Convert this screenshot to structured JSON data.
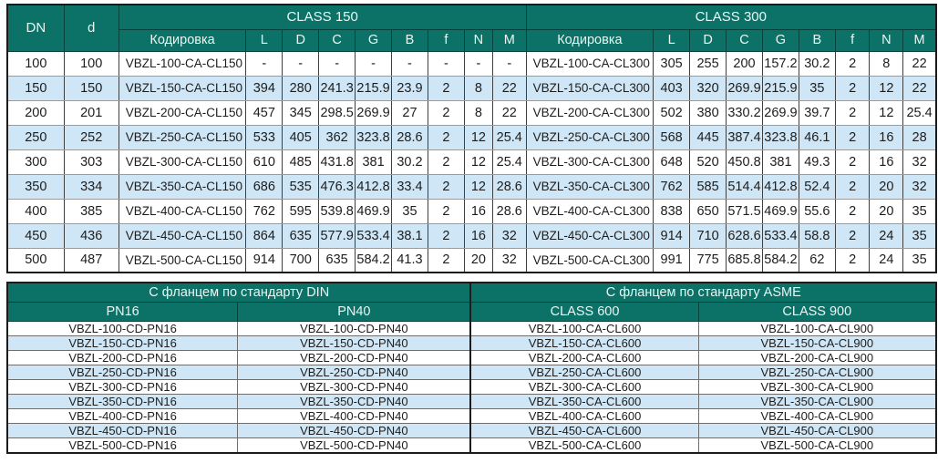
{
  "top_table": {
    "dn_label": "DN",
    "d_label": "d",
    "class150_label": "CLASS 150",
    "class300_label": "CLASS 300",
    "sub_headers": [
      "Кодировка",
      "L",
      "D",
      "C",
      "G",
      "B",
      "f",
      "N",
      "M"
    ],
    "rows": [
      {
        "dn": "100",
        "d": "100",
        "c150": [
          "VBZL-100-CA-CL150",
          "-",
          "-",
          "-",
          "-",
          "-",
          "-",
          "-",
          "-"
        ],
        "c300": [
          "VBZL-100-CA-CL300",
          "305",
          "255",
          "200",
          "157.2",
          "30.2",
          "2",
          "8",
          "22"
        ]
      },
      {
        "dn": "150",
        "d": "150",
        "c150": [
          "VBZL-150-CA-CL150",
          "394",
          "280",
          "241.3",
          "215.9",
          "23.9",
          "2",
          "8",
          "22"
        ],
        "c300": [
          "VBZL-150-CA-CL300",
          "403",
          "320",
          "269.9",
          "215.9",
          "35",
          "2",
          "12",
          "22"
        ]
      },
      {
        "dn": "200",
        "d": "201",
        "c150": [
          "VBZL-200-CA-CL150",
          "457",
          "345",
          "298.5",
          "269.9",
          "27",
          "2",
          "8",
          "22"
        ],
        "c300": [
          "VBZL-200-CA-CL300",
          "502",
          "380",
          "330.2",
          "269.9",
          "39.7",
          "2",
          "12",
          "25.4"
        ]
      },
      {
        "dn": "250",
        "d": "252",
        "c150": [
          "VBZL-250-CA-CL150",
          "533",
          "405",
          "362",
          "323.8",
          "28.6",
          "2",
          "12",
          "25.4"
        ],
        "c300": [
          "VBZL-250-CA-CL300",
          "568",
          "445",
          "387.4",
          "323.8",
          "46.1",
          "2",
          "16",
          "28"
        ]
      },
      {
        "dn": "300",
        "d": "303",
        "c150": [
          "VBZL-300-CA-CL150",
          "610",
          "485",
          "431.8",
          "381",
          "30.2",
          "2",
          "12",
          "25.4"
        ],
        "c300": [
          "VBZL-300-CA-CL300",
          "648",
          "520",
          "450.8",
          "381",
          "49.3",
          "2",
          "16",
          "32"
        ]
      },
      {
        "dn": "350",
        "d": "334",
        "c150": [
          "VBZL-350-CA-CL150",
          "686",
          "535",
          "476.3",
          "412.8",
          "33.4",
          "2",
          "12",
          "28.6"
        ],
        "c300": [
          "VBZL-350-CA-CL300",
          "762",
          "585",
          "514.4",
          "412.8",
          "52.4",
          "2",
          "20",
          "32"
        ]
      },
      {
        "dn": "400",
        "d": "385",
        "c150": [
          "VBZL-400-CA-CL150",
          "762",
          "595",
          "539.8",
          "469.9",
          "35",
          "2",
          "16",
          "28.6"
        ],
        "c300": [
          "VBZL-400-CA-CL300",
          "838",
          "650",
          "571.5",
          "469.9",
          "55.6",
          "2",
          "20",
          "35"
        ]
      },
      {
        "dn": "450",
        "d": "436",
        "c150": [
          "VBZL-450-CA-CL150",
          "864",
          "635",
          "577.9",
          "533.4",
          "38.1",
          "2",
          "16",
          "32"
        ],
        "c300": [
          "VBZL-450-CA-CL300",
          "914",
          "710",
          "628.6",
          "533.4",
          "58.8",
          "2",
          "24",
          "35"
        ]
      },
      {
        "dn": "500",
        "d": "487",
        "c150": [
          "VBZL-500-CA-CL150",
          "914",
          "700",
          "635",
          "584.2",
          "41.3",
          "2",
          "20",
          "32"
        ],
        "c300": [
          "VBZL-500-CA-CL300",
          "991",
          "775",
          "685.8",
          "584.2",
          "62",
          "2",
          "24",
          "35"
        ]
      }
    ]
  },
  "bottom_table": {
    "din_title": "С фланцем по стандарту DIN",
    "asme_title": "С фланцем по стандарту ASME",
    "sub_headers": [
      "PN16",
      "PN40",
      "CLASS 600",
      "CLASS 900"
    ],
    "rows": [
      [
        "VBZL-100-CD-PN16",
        "VBZL-100-CD-PN40",
        "VBZL-100-CA-CL600",
        "VBZL-100-CA-CL900"
      ],
      [
        "VBZL-150-CD-PN16",
        "VBZL-150-CD-PN40",
        "VBZL-150-CA-CL600",
        "VBZL-150-CA-CL900"
      ],
      [
        "VBZL-200-CD-PN16",
        "VBZL-200-CD-PN40",
        "VBZL-200-CA-CL600",
        "VBZL-200-CA-CL900"
      ],
      [
        "VBZL-250-CD-PN16",
        "VBZL-250-CD-PN40",
        "VBZL-250-CA-CL600",
        "VBZL-250-CA-CL900"
      ],
      [
        "VBZL-300-CD-PN16",
        "VBZL-300-CD-PN40",
        "VBZL-300-CA-CL600",
        "VBZL-300-CA-CL900"
      ],
      [
        "VBZL-350-CD-PN16",
        "VBZL-350-CD-PN40",
        "VBZL-350-CA-CL600",
        "VBZL-350-CA-CL900"
      ],
      [
        "VBZL-400-CD-PN16",
        "VBZL-400-CD-PN40",
        "VBZL-400-CA-CL600",
        "VBZL-400-CA-CL900"
      ],
      [
        "VBZL-450-CD-PN16",
        "VBZL-450-CD-PN40",
        "VBZL-450-CA-CL600",
        "VBZL-450-CA-CL900"
      ],
      [
        "VBZL-500-CD-PN16",
        "VBZL-500-CD-PN40",
        "VBZL-500-CA-CL600",
        "VBZL-500-CA-CL900"
      ]
    ]
  },
  "colors": {
    "header_teal": "#0c7167",
    "header_text": "#eaf6f3",
    "alt_row_blue": "#cfe6f6",
    "outer_border": "#1b1b1b",
    "body_text": "#1d1d1d"
  }
}
